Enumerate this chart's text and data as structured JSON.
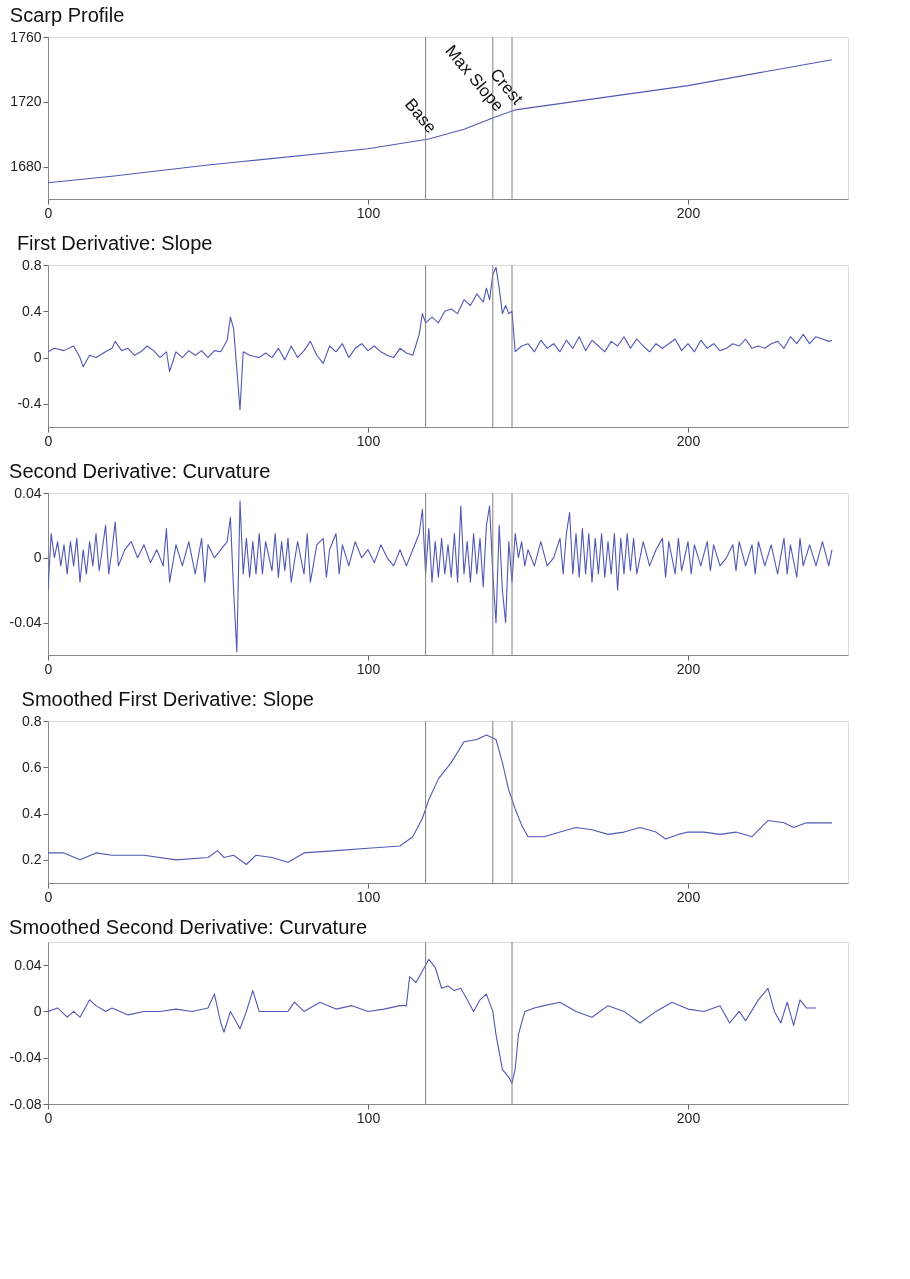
{
  "chart_data": [
    {
      "type": "line",
      "title": "Scarp Profile",
      "x": [
        0,
        20,
        50,
        60,
        100,
        119,
        130,
        139,
        146,
        200,
        245
      ],
      "series": [
        {
          "color": "#5058b4",
          "values": [
            1670,
            1674,
            1681,
            1683,
            1691,
            1697,
            1703,
            1710,
            1715,
            1730,
            1746
          ]
        }
      ],
      "xlim": [
        0,
        250
      ],
      "xticks": [
        0,
        100,
        200
      ],
      "ylim": [
        1660,
        1760
      ],
      "yticks": [
        1680,
        1720,
        1760
      ],
      "ref_lines": [
        {
          "axis": "x",
          "value": 118,
          "label": "Base",
          "color": "#808080"
        },
        {
          "axis": "x",
          "value": 139,
          "label": "Max Slope",
          "color": "#808080"
        },
        {
          "axis": "x",
          "value": 145,
          "label": "Crest",
          "color": "#808080"
        }
      ]
    },
    {
      "type": "line",
      "title": "First Derivative: Slope",
      "x": [
        0,
        2,
        5,
        8,
        10,
        11,
        13,
        15,
        18,
        20,
        21,
        23,
        25,
        27,
        29,
        31,
        33,
        35,
        37,
        38,
        40,
        42,
        44,
        46,
        48,
        50,
        52,
        54,
        56,
        57,
        58,
        59,
        60,
        61,
        63,
        66,
        68,
        70,
        72,
        74,
        76,
        78,
        80,
        82,
        84,
        86,
        88,
        90,
        92,
        94,
        96,
        98,
        100,
        102,
        104,
        106,
        108,
        110,
        112,
        114,
        116,
        117,
        118,
        120,
        122,
        124,
        126,
        128,
        130,
        132,
        134,
        136,
        137,
        138,
        139,
        140,
        141,
        142,
        143,
        144,
        145,
        146,
        148,
        150,
        152,
        154,
        156,
        158,
        160,
        162,
        164,
        166,
        168,
        170,
        172,
        174,
        176,
        178,
        180,
        182,
        184,
        186,
        188,
        190,
        192,
        194,
        196,
        198,
        200,
        202,
        204,
        206,
        208,
        210,
        212,
        214,
        216,
        218,
        220,
        222,
        224,
        226,
        228,
        230,
        232,
        234,
        236,
        238,
        240,
        242,
        244,
        245
      ],
      "series": [
        {
          "color": "#5058b4",
          "values": [
            0.05,
            0.08,
            0.06,
            0.1,
            0.0,
            -0.08,
            0.02,
            0.0,
            0.05,
            0.08,
            0.14,
            0.06,
            0.08,
            0.02,
            0.05,
            0.1,
            0.06,
            0.0,
            0.05,
            -0.12,
            0.05,
            0.0,
            0.06,
            0.02,
            0.06,
            0.0,
            0.06,
            0.05,
            0.15,
            0.35,
            0.25,
            -0.1,
            -0.45,
            0.05,
            0.02,
            0.0,
            0.04,
            0.0,
            0.08,
            -0.02,
            0.1,
            0.0,
            0.06,
            0.14,
            0.02,
            -0.05,
            0.1,
            0.05,
            0.12,
            0.0,
            0.08,
            0.12,
            0.06,
            0.1,
            0.05,
            0.02,
            0.0,
            0.08,
            0.04,
            0.02,
            0.2,
            0.38,
            0.3,
            0.35,
            0.3,
            0.4,
            0.42,
            0.38,
            0.5,
            0.45,
            0.55,
            0.48,
            0.6,
            0.5,
            0.72,
            0.78,
            0.6,
            0.38,
            0.45,
            0.38,
            0.4,
            0.05,
            0.1,
            0.12,
            0.05,
            0.15,
            0.08,
            0.12,
            0.05,
            0.15,
            0.08,
            0.18,
            0.06,
            0.15,
            0.1,
            0.05,
            0.14,
            0.1,
            0.18,
            0.08,
            0.16,
            0.1,
            0.05,
            0.12,
            0.08,
            0.12,
            0.16,
            0.06,
            0.12,
            0.05,
            0.15,
            0.08,
            0.12,
            0.06,
            0.08,
            0.12,
            0.1,
            0.16,
            0.08,
            0.1,
            0.08,
            0.12,
            0.14,
            0.08,
            0.18,
            0.12,
            0.2,
            0.12,
            0.18,
            0.16,
            0.14,
            0.15
          ]
        }
      ],
      "xlim": [
        0,
        250
      ],
      "xticks": [
        0,
        100,
        200
      ],
      "ylim": [
        -0.6,
        0.8
      ],
      "yticks": [
        -0.4,
        0,
        0.4,
        0.8
      ],
      "ref_lines": [
        {
          "axis": "x",
          "value": 118,
          "color": "#808080"
        },
        {
          "axis": "x",
          "value": 139,
          "color": "#808080"
        },
        {
          "axis": "x",
          "value": 145,
          "color": "#808080"
        }
      ]
    },
    {
      "type": "line",
      "title": "Second Derivative: Curvature",
      "x": [
        0,
        1,
        2,
        3,
        4,
        5,
        6,
        7,
        8,
        9,
        10,
        11,
        12,
        13,
        14,
        15,
        16,
        18,
        19,
        20,
        21,
        22,
        24,
        26,
        28,
        30,
        32,
        34,
        36,
        37,
        38,
        40,
        42,
        44,
        46,
        48,
        49,
        50,
        52,
        54,
        56,
        57,
        58,
        59,
        60,
        61,
        62,
        63,
        64,
        65,
        66,
        67,
        68,
        70,
        71,
        72,
        73,
        74,
        75,
        76,
        78,
        80,
        81,
        82,
        84,
        86,
        87,
        88,
        90,
        91,
        92,
        94,
        96,
        98,
        100,
        102,
        104,
        106,
        108,
        110,
        112,
        114,
        116,
        117,
        118,
        119,
        120,
        121,
        122,
        123,
        124,
        125,
        126,
        127,
        128,
        129,
        130,
        131,
        132,
        133,
        134,
        135,
        136,
        137,
        138,
        139,
        140,
        141,
        142,
        143,
        144,
        145,
        146,
        147,
        148,
        149,
        150,
        152,
        154,
        156,
        158,
        160,
        161,
        162,
        163,
        164,
        165,
        166,
        167,
        168,
        169,
        170,
        171,
        172,
        173,
        174,
        175,
        176,
        177,
        178,
        179,
        180,
        181,
        182,
        183,
        184,
        186,
        188,
        190,
        192,
        193,
        194,
        196,
        197,
        198,
        200,
        201,
        202,
        204,
        206,
        207,
        208,
        210,
        212,
        214,
        215,
        216,
        218,
        220,
        221,
        222,
        224,
        226,
        228,
        230,
        231,
        232,
        234,
        235,
        236,
        238,
        240,
        242,
        244,
        245
      ],
      "series": [
        {
          "color": "#5058b4",
          "values": [
            -0.02,
            0.015,
            0.0,
            0.01,
            -0.005,
            0.008,
            -0.01,
            0.01,
            -0.005,
            0.012,
            -0.015,
            0.005,
            -0.01,
            0.01,
            -0.005,
            0.015,
            -0.008,
            0.02,
            -0.01,
            0.005,
            0.022,
            -0.005,
            0.005,
            0.01,
            0.0,
            0.008,
            -0.003,
            0.005,
            -0.005,
            0.018,
            -0.015,
            0.008,
            -0.005,
            0.01,
            -0.01,
            0.012,
            -0.015,
            0.008,
            0.0,
            0.005,
            0.01,
            0.025,
            -0.02,
            -0.058,
            0.035,
            -0.01,
            0.012,
            -0.012,
            0.01,
            -0.01,
            0.015,
            -0.01,
            0.01,
            -0.008,
            0.015,
            -0.012,
            0.01,
            -0.008,
            0.012,
            -0.015,
            0.01,
            -0.01,
            0.015,
            -0.015,
            0.008,
            0.012,
            -0.012,
            0.005,
            0.015,
            -0.01,
            0.008,
            -0.005,
            0.01,
            0.0,
            0.005,
            -0.003,
            0.008,
            0.0,
            -0.005,
            0.005,
            -0.005,
            0.005,
            0.015,
            0.03,
            -0.01,
            0.018,
            -0.015,
            0.01,
            -0.012,
            0.012,
            -0.01,
            0.008,
            -0.012,
            0.015,
            -0.015,
            0.032,
            -0.01,
            0.01,
            -0.015,
            0.015,
            -0.01,
            0.012,
            -0.018,
            0.02,
            0.032,
            -0.01,
            -0.04,
            0.02,
            -0.02,
            -0.04,
            0.01,
            -0.015,
            0.015,
            0.0,
            0.01,
            -0.005,
            0.005,
            -0.005,
            0.01,
            -0.005,
            0.0,
            0.012,
            -0.01,
            0.015,
            0.028,
            -0.01,
            0.015,
            -0.012,
            0.018,
            -0.01,
            0.015,
            -0.015,
            0.012,
            -0.01,
            0.015,
            -0.012,
            0.01,
            -0.01,
            0.015,
            -0.02,
            0.012,
            -0.01,
            0.015,
            -0.008,
            0.012,
            -0.01,
            0.01,
            -0.005,
            0.005,
            0.012,
            -0.012,
            0.01,
            -0.01,
            0.012,
            -0.008,
            0.01,
            -0.01,
            0.008,
            -0.005,
            0.01,
            -0.008,
            0.008,
            -0.005,
            0.0,
            0.008,
            -0.008,
            0.01,
            -0.005,
            0.008,
            -0.01,
            0.01,
            -0.005,
            0.008,
            -0.01,
            0.012,
            -0.01,
            0.008,
            -0.012,
            0.012,
            -0.005,
            0.008,
            -0.005,
            0.01,
            -0.005,
            0.005
          ]
        }
      ],
      "xlim": [
        0,
        250
      ],
      "xticks": [
        0,
        100,
        200
      ],
      "ylim": [
        -0.06,
        0.04
      ],
      "yticks": [
        -0.04,
        0,
        0.04
      ],
      "ref_lines": [
        {
          "axis": "x",
          "value": 118,
          "color": "#808080"
        },
        {
          "axis": "x",
          "value": 139,
          "color": "#808080"
        },
        {
          "axis": "x",
          "value": 145,
          "color": "#808080"
        }
      ]
    },
    {
      "type": "line",
      "title": "Smoothed First Derivative: Slope",
      "x": [
        0,
        5,
        10,
        15,
        20,
        30,
        40,
        50,
        53,
        55,
        58,
        62,
        65,
        70,
        75,
        80,
        90,
        100,
        110,
        114,
        117,
        119,
        122,
        126,
        130,
        134,
        137,
        140,
        142,
        144,
        146,
        148,
        150,
        155,
        160,
        165,
        170,
        175,
        180,
        185,
        190,
        193,
        197,
        200,
        205,
        210,
        215,
        220,
        225,
        230,
        233,
        237,
        245
      ],
      "series": [
        {
          "color": "#5058b4",
          "values": [
            0.23,
            0.23,
            0.2,
            0.23,
            0.22,
            0.22,
            0.2,
            0.21,
            0.24,
            0.21,
            0.22,
            0.18,
            0.22,
            0.21,
            0.19,
            0.23,
            0.24,
            0.25,
            0.26,
            0.3,
            0.38,
            0.46,
            0.55,
            0.62,
            0.71,
            0.72,
            0.74,
            0.72,
            0.62,
            0.5,
            0.42,
            0.35,
            0.3,
            0.3,
            0.32,
            0.34,
            0.33,
            0.31,
            0.32,
            0.34,
            0.32,
            0.29,
            0.31,
            0.32,
            0.32,
            0.31,
            0.32,
            0.3,
            0.37,
            0.36,
            0.34,
            0.36,
            0.36
          ]
        }
      ],
      "xlim": [
        0,
        250
      ],
      "xticks": [
        0,
        100,
        200
      ],
      "ylim": [
        0.1,
        0.8
      ],
      "yticks": [
        0.2,
        0.4,
        0.6,
        0.8
      ],
      "ref_lines": [
        {
          "axis": "x",
          "value": 118,
          "color": "#808080"
        },
        {
          "axis": "x",
          "value": 139,
          "color": "#808080"
        },
        {
          "axis": "x",
          "value": 145,
          "color": "#808080"
        }
      ]
    },
    {
      "type": "line",
      "title": "Smoothed Second Derivative: Curvature",
      "x": [
        0,
        3,
        6,
        8,
        10,
        13,
        15,
        18,
        20,
        25,
        30,
        35,
        40,
        45,
        50,
        52,
        54,
        55,
        57,
        60,
        62,
        64,
        66,
        70,
        75,
        77,
        80,
        85,
        90,
        95,
        100,
        105,
        110,
        112,
        113,
        115,
        117,
        119,
        121,
        123,
        125,
        127,
        129,
        131,
        133,
        135,
        137,
        139,
        140,
        142,
        144,
        145,
        146,
        147,
        149,
        152,
        155,
        160,
        165,
        170,
        175,
        180,
        185,
        190,
        195,
        200,
        205,
        210,
        213,
        216,
        218,
        222,
        225,
        227,
        229,
        231,
        233,
        235,
        237,
        240
      ],
      "series": [
        {
          "color": "#5058b4",
          "values": [
            0.0,
            0.003,
            -0.005,
            0.0,
            -0.005,
            0.01,
            0.005,
            0.0,
            0.003,
            -0.003,
            0.0,
            0.0,
            0.002,
            0.0,
            0.003,
            0.015,
            -0.01,
            -0.018,
            0.0,
            -0.015,
            0.0,
            0.018,
            0.0,
            0.0,
            0.0,
            0.008,
            0.0,
            0.008,
            0.002,
            0.005,
            0.0,
            0.002,
            0.005,
            0.005,
            0.03,
            0.025,
            0.035,
            0.045,
            0.038,
            0.02,
            0.022,
            0.018,
            0.02,
            0.01,
            0.0,
            0.01,
            0.015,
            0.0,
            -0.02,
            -0.05,
            -0.057,
            -0.062,
            -0.05,
            -0.02,
            0.0,
            0.003,
            0.005,
            0.008,
            0.0,
            -0.005,
            0.005,
            0.0,
            -0.01,
            0.0,
            0.008,
            0.002,
            0.0,
            0.005,
            -0.01,
            0.0,
            -0.008,
            0.01,
            0.02,
            0.0,
            -0.01,
            0.008,
            -0.012,
            0.01,
            0.003,
            0.003
          ]
        }
      ],
      "xlim": [
        0,
        250
      ],
      "xticks": [
        0,
        100,
        200
      ],
      "ylim": [
        -0.08,
        0.06
      ],
      "yticks": [
        -0.08,
        -0.04,
        0,
        0.04
      ],
      "ref_lines": [
        {
          "axis": "x",
          "value": 118,
          "color": "#808080"
        },
        {
          "axis": "x",
          "value": 145,
          "color": "#808080"
        }
      ]
    }
  ]
}
